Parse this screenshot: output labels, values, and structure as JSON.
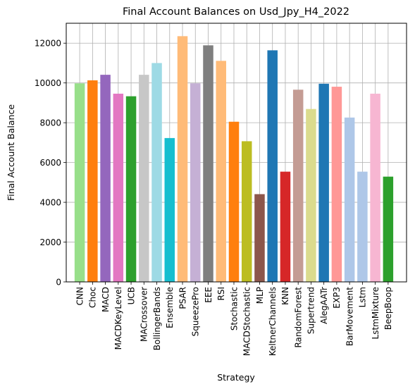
{
  "chart_data": {
    "type": "bar",
    "title": "Final Account Balances on Usd_Jpy_H4_2022",
    "xlabel": "Strategy",
    "ylabel": "Final Account Balance",
    "ylim": [
      0,
      13000
    ],
    "yticks": [
      0,
      2000,
      4000,
      6000,
      8000,
      10000,
      12000
    ],
    "grid": true,
    "categories": [
      "CNN",
      "Choc",
      "MACD",
      "MACDKeyLevel",
      "UCB",
      "MACrossover",
      "BollingerBands",
      "Ensemble",
      "PSAR",
      "SqueezePro",
      "EEE",
      "RSI",
      "Stochastic",
      "MACDStochastic",
      "MLP",
      "KeltnerChannels",
      "KNN",
      "RandomForest",
      "Supertrend",
      "AlegAATr",
      "EXP3",
      "BarMovement",
      "Lstm",
      "LstmMixture",
      "BeepBoop"
    ],
    "values": [
      9980,
      10130,
      10410,
      9460,
      9330,
      10410,
      11000,
      7230,
      12350,
      9980,
      11890,
      11110,
      8050,
      7070,
      4410,
      11640,
      5540,
      9660,
      8690,
      9960,
      9810,
      8260,
      5540,
      9460,
      5290
    ],
    "colors": [
      "#98df8a",
      "#ff7f0e",
      "#9467bd",
      "#e377c2",
      "#2ca02c",
      "#c7c7c7",
      "#9edae5",
      "#17becf",
      "#ffbb78",
      "#c5b0d5",
      "#7f7f7f",
      "#ffbb78",
      "#ff7f0e",
      "#bcbd22",
      "#8c564b",
      "#1f77b4",
      "#d62728",
      "#c49c94",
      "#dbdb8d",
      "#1f77b4",
      "#ff9896",
      "#aec7e8",
      "#aec7e8",
      "#f7b6d2",
      "#2ca02c"
    ]
  }
}
